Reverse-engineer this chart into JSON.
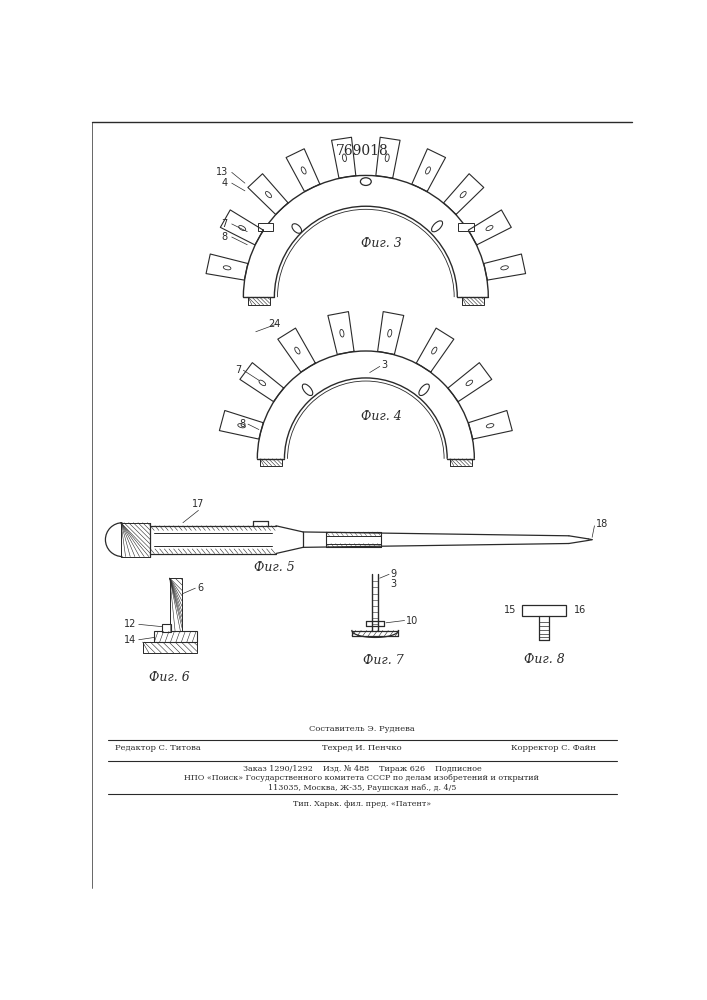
{
  "patent_number": "769018",
  "background_color": "#ffffff",
  "line_color": "#2a2a2a",
  "fig3_label": "Фиг. 3",
  "fig4_label": "Фиг. 4",
  "fig5_label": "Фиг. 5",
  "fig6_label": "Фиг. 6",
  "fig7_label": "Фиг. 7",
  "fig8_label": "Фиг. 8",
  "footer_composer": "Составитель Э. Руднева",
  "footer_editor": "Редактор С. Титова",
  "footer_techred": "Техред И. Пенчко",
  "footer_corrector": "Корректор С. Файн",
  "footer_order": "Заказ 1290/1292    Изд. № 488    Тираж 626    Подписное",
  "footer_npo": "НПО «Поиск» Государственного комитета СССР по делам изобретений и открытий",
  "footer_addr": "113035, Москва, Ж-35, Раушская наб., д. 4/5",
  "footer_tip": "Тип. Харьк. фил. пред. «Патент»",
  "label_13": "13",
  "label_4": "4",
  "label_7": "7",
  "label_8": "8",
  "label_24": "24",
  "label_17": "17",
  "label_18": "18",
  "label_6": "6",
  "label_12": "12",
  "label_14": "14",
  "label_3": "3",
  "label_9": "9",
  "label_10": "10",
  "label_15": "15",
  "label_16": "16"
}
